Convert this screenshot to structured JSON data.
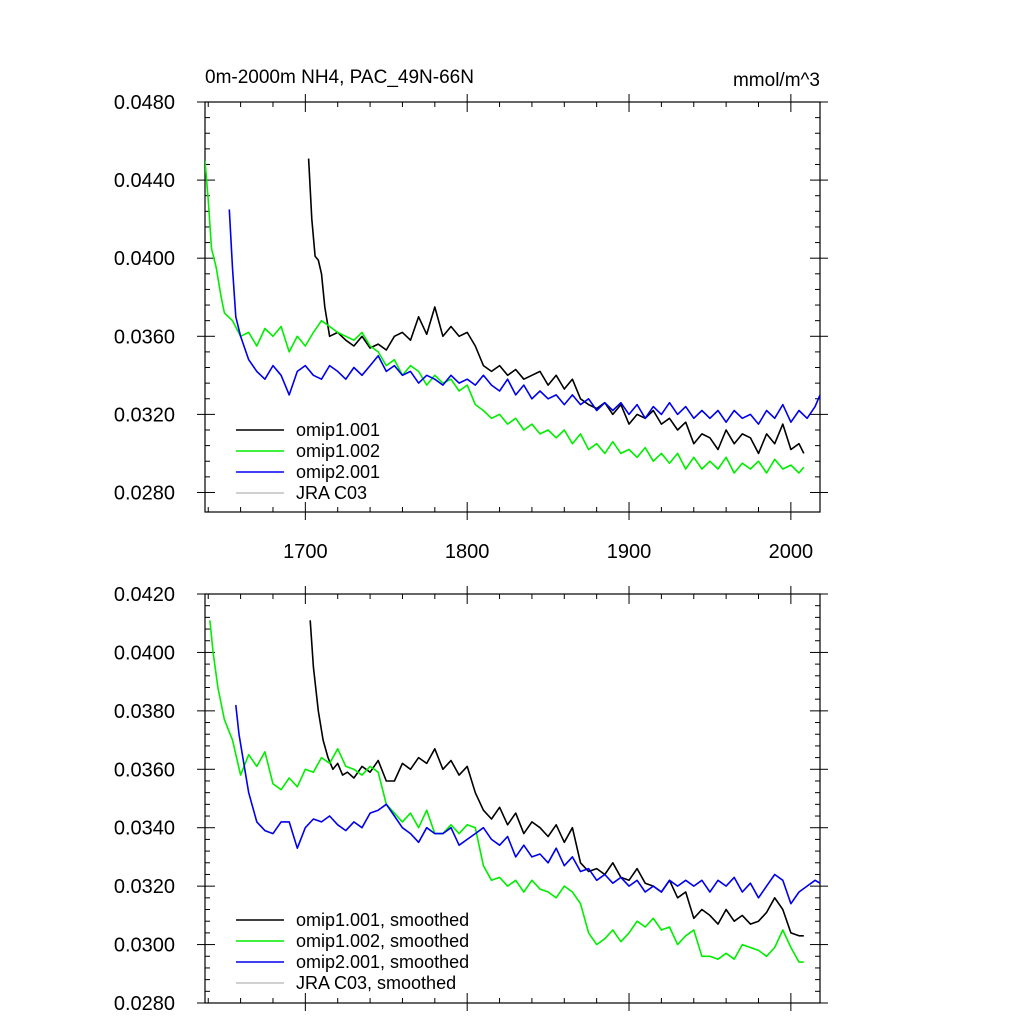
{
  "figure": {
    "title": "0m-2000m NH4, PAC_49N-66N",
    "units": "mmol/m^3"
  },
  "chart_data": [
    {
      "type": "line",
      "title": "0m-2000m NH4, PAC_49N-66N",
      "units": "mmol/m^3",
      "xlabel": "",
      "ylabel": "",
      "xlim": [
        1638,
        2018
      ],
      "ylim": [
        0.027,
        0.048
      ],
      "x_ticks": [
        1700,
        1800,
        1900,
        2000
      ],
      "x_tick_labels": [
        "1700",
        "1800",
        "1900",
        "2000"
      ],
      "y_ticks": [
        0.028,
        0.032,
        0.036,
        0.04,
        0.044,
        0.048
      ],
      "y_tick_labels": [
        "0.0280",
        "0.0320",
        "0.0360",
        "0.0400",
        "0.0440",
        "0.0480"
      ],
      "legend_position": "bottom-left",
      "series": [
        {
          "name": "omip1.001",
          "color": "#000000",
          "x": [
            1702,
            1704,
            1706,
            1708,
            1710,
            1712,
            1715,
            1720,
            1725,
            1730,
            1735,
            1740,
            1745,
            1750,
            1755,
            1760,
            1765,
            1770,
            1775,
            1780,
            1785,
            1790,
            1795,
            1800,
            1805,
            1810,
            1815,
            1820,
            1825,
            1830,
            1835,
            1840,
            1845,
            1850,
            1855,
            1860,
            1865,
            1870,
            1875,
            1880,
            1885,
            1890,
            1895,
            1900,
            1905,
            1910,
            1915,
            1920,
            1925,
            1930,
            1935,
            1940,
            1945,
            1950,
            1955,
            1960,
            1965,
            1970,
            1975,
            1980,
            1985,
            1990,
            1995,
            2000,
            2005,
            2008
          ],
          "values": [
            0.0451,
            0.042,
            0.0401,
            0.0399,
            0.0392,
            0.0375,
            0.036,
            0.0362,
            0.0358,
            0.0355,
            0.036,
            0.0354,
            0.0356,
            0.0353,
            0.036,
            0.0362,
            0.0358,
            0.037,
            0.0361,
            0.0375,
            0.036,
            0.0365,
            0.036,
            0.0362,
            0.0355,
            0.0345,
            0.0342,
            0.0345,
            0.034,
            0.0343,
            0.0338,
            0.034,
            0.0342,
            0.0335,
            0.034,
            0.0333,
            0.0338,
            0.0328,
            0.0325,
            0.0323,
            0.0326,
            0.032,
            0.0325,
            0.0315,
            0.032,
            0.0318,
            0.0322,
            0.0315,
            0.0318,
            0.0312,
            0.0316,
            0.0305,
            0.031,
            0.0308,
            0.0302,
            0.0312,
            0.0305,
            0.031,
            0.0308,
            0.03,
            0.031,
            0.0305,
            0.0315,
            0.0302,
            0.0305,
            0.03
          ]
        },
        {
          "name": "omip1.002",
          "color": "#00ee00",
          "x": [
            1638,
            1640,
            1642,
            1645,
            1648,
            1650,
            1655,
            1660,
            1665,
            1670,
            1675,
            1680,
            1685,
            1690,
            1695,
            1700,
            1705,
            1710,
            1715,
            1720,
            1725,
            1730,
            1735,
            1740,
            1745,
            1750,
            1755,
            1760,
            1765,
            1770,
            1775,
            1780,
            1785,
            1790,
            1795,
            1800,
            1805,
            1810,
            1815,
            1820,
            1825,
            1830,
            1835,
            1840,
            1845,
            1850,
            1855,
            1860,
            1865,
            1870,
            1875,
            1880,
            1885,
            1890,
            1895,
            1900,
            1905,
            1910,
            1915,
            1920,
            1925,
            1930,
            1935,
            1940,
            1945,
            1950,
            1955,
            1960,
            1965,
            1970,
            1975,
            1980,
            1985,
            1990,
            1995,
            2000,
            2005,
            2008
          ],
          "values": [
            0.045,
            0.043,
            0.0405,
            0.0395,
            0.038,
            0.0372,
            0.0368,
            0.036,
            0.0362,
            0.0355,
            0.0364,
            0.036,
            0.0365,
            0.0352,
            0.036,
            0.0355,
            0.0362,
            0.0368,
            0.0365,
            0.0362,
            0.036,
            0.0358,
            0.0362,
            0.0355,
            0.0352,
            0.0345,
            0.0348,
            0.034,
            0.0345,
            0.0342,
            0.0335,
            0.034,
            0.0336,
            0.0338,
            0.0332,
            0.0335,
            0.0325,
            0.0322,
            0.0318,
            0.032,
            0.0315,
            0.0318,
            0.0312,
            0.0315,
            0.031,
            0.0312,
            0.0308,
            0.0312,
            0.0305,
            0.031,
            0.0302,
            0.0305,
            0.03,
            0.0306,
            0.03,
            0.0302,
            0.0298,
            0.0303,
            0.0296,
            0.03,
            0.0295,
            0.03,
            0.0292,
            0.0298,
            0.0292,
            0.0296,
            0.0292,
            0.0298,
            0.029,
            0.0295,
            0.0292,
            0.0296,
            0.029,
            0.0297,
            0.0292,
            0.0294,
            0.029,
            0.0293
          ]
        },
        {
          "name": "omip2.001",
          "color": "#0000ee",
          "x": [
            1653,
            1655,
            1657,
            1660,
            1665,
            1670,
            1675,
            1680,
            1685,
            1690,
            1695,
            1700,
            1705,
            1710,
            1715,
            1720,
            1725,
            1730,
            1735,
            1740,
            1745,
            1750,
            1755,
            1760,
            1765,
            1770,
            1775,
            1780,
            1785,
            1790,
            1795,
            1800,
            1805,
            1810,
            1815,
            1820,
            1825,
            1830,
            1835,
            1840,
            1845,
            1850,
            1855,
            1860,
            1865,
            1870,
            1875,
            1880,
            1885,
            1890,
            1895,
            1900,
            1905,
            1910,
            1915,
            1920,
            1925,
            1930,
            1935,
            1940,
            1945,
            1950,
            1955,
            1960,
            1965,
            1970,
            1975,
            1980,
            1985,
            1990,
            1995,
            2000,
            2005,
            2010,
            2015,
            2018
          ],
          "values": [
            0.0425,
            0.0395,
            0.037,
            0.036,
            0.0348,
            0.0342,
            0.0338,
            0.0345,
            0.034,
            0.033,
            0.0342,
            0.0345,
            0.034,
            0.0338,
            0.0345,
            0.0342,
            0.0338,
            0.0344,
            0.034,
            0.0345,
            0.035,
            0.0342,
            0.0345,
            0.034,
            0.0342,
            0.0336,
            0.034,
            0.0338,
            0.0335,
            0.034,
            0.0336,
            0.0338,
            0.0335,
            0.034,
            0.0335,
            0.0332,
            0.0338,
            0.033,
            0.0335,
            0.0328,
            0.0332,
            0.0328,
            0.033,
            0.0325,
            0.033,
            0.0325,
            0.0328,
            0.0322,
            0.0326,
            0.0322,
            0.0326,
            0.032,
            0.0325,
            0.0318,
            0.0324,
            0.032,
            0.0326,
            0.032,
            0.0324,
            0.0318,
            0.0322,
            0.0318,
            0.0322,
            0.0316,
            0.0322,
            0.0318,
            0.032,
            0.0315,
            0.0322,
            0.0318,
            0.0325,
            0.0316,
            0.0322,
            0.0318,
            0.0324,
            0.033
          ]
        },
        {
          "name": "JRA C03",
          "color": "#c0c0c0",
          "x": [],
          "values": []
        }
      ]
    },
    {
      "type": "line",
      "title": "",
      "xlabel": "",
      "ylabel": "",
      "xlim": [
        1638,
        2018
      ],
      "ylim": [
        0.028,
        0.042
      ],
      "x_ticks": [
        1700,
        1800,
        1900,
        2000
      ],
      "x_tick_labels": [],
      "y_ticks": [
        0.028,
        0.03,
        0.032,
        0.034,
        0.036,
        0.038,
        0.04,
        0.042
      ],
      "y_tick_labels": [
        "0.0280",
        "0.0300",
        "0.0320",
        "0.0340",
        "0.0360",
        "0.0380",
        "0.0400",
        "0.0420"
      ],
      "legend_position": "bottom-left",
      "series": [
        {
          "name": "omip1.001, smoothed",
          "color": "#000000",
          "x": [
            1703,
            1705,
            1708,
            1711,
            1714,
            1717,
            1720,
            1723,
            1726,
            1730,
            1735,
            1740,
            1745,
            1750,
            1755,
            1760,
            1765,
            1770,
            1775,
            1780,
            1785,
            1790,
            1795,
            1800,
            1805,
            1810,
            1815,
            1820,
            1825,
            1830,
            1835,
            1840,
            1845,
            1850,
            1855,
            1860,
            1865,
            1870,
            1875,
            1880,
            1885,
            1890,
            1895,
            1900,
            1905,
            1910,
            1915,
            1920,
            1925,
            1930,
            1935,
            1940,
            1945,
            1950,
            1955,
            1960,
            1965,
            1970,
            1975,
            1980,
            1985,
            1990,
            1995,
            2000,
            2005,
            2008
          ],
          "values": [
            0.0411,
            0.0395,
            0.038,
            0.037,
            0.0364,
            0.036,
            0.0362,
            0.0358,
            0.0359,
            0.0357,
            0.0361,
            0.0359,
            0.0363,
            0.0356,
            0.0356,
            0.0362,
            0.036,
            0.0364,
            0.0362,
            0.0367,
            0.036,
            0.0363,
            0.0358,
            0.0361,
            0.0352,
            0.0346,
            0.0343,
            0.0347,
            0.0341,
            0.0345,
            0.0338,
            0.0342,
            0.034,
            0.0337,
            0.0341,
            0.0335,
            0.034,
            0.0328,
            0.0325,
            0.0326,
            0.0324,
            0.0328,
            0.0323,
            0.0322,
            0.0326,
            0.0321,
            0.032,
            0.0318,
            0.0322,
            0.0316,
            0.0318,
            0.0309,
            0.0312,
            0.031,
            0.0307,
            0.0312,
            0.0308,
            0.031,
            0.0307,
            0.0308,
            0.0311,
            0.0316,
            0.0312,
            0.0304,
            0.0303,
            0.0303
          ]
        },
        {
          "name": "omip1.002, smoothed",
          "color": "#00ee00",
          "x": [
            1641,
            1643,
            1646,
            1650,
            1655,
            1660,
            1665,
            1670,
            1675,
            1680,
            1685,
            1690,
            1695,
            1700,
            1705,
            1710,
            1715,
            1720,
            1725,
            1730,
            1735,
            1740,
            1745,
            1750,
            1755,
            1760,
            1765,
            1770,
            1775,
            1780,
            1785,
            1790,
            1795,
            1800,
            1805,
            1810,
            1815,
            1820,
            1825,
            1830,
            1835,
            1840,
            1845,
            1850,
            1855,
            1860,
            1865,
            1870,
            1875,
            1880,
            1885,
            1890,
            1895,
            1900,
            1905,
            1910,
            1915,
            1920,
            1925,
            1930,
            1935,
            1940,
            1945,
            1950,
            1955,
            1960,
            1965,
            1970,
            1975,
            1980,
            1985,
            1990,
            1995,
            2000,
            2005,
            2008
          ],
          "values": [
            0.0411,
            0.04,
            0.0388,
            0.0377,
            0.037,
            0.0358,
            0.0365,
            0.0361,
            0.0366,
            0.0355,
            0.0353,
            0.0357,
            0.0354,
            0.036,
            0.0359,
            0.0364,
            0.0362,
            0.0367,
            0.0361,
            0.036,
            0.0358,
            0.0361,
            0.0359,
            0.0348,
            0.0345,
            0.0342,
            0.0345,
            0.034,
            0.0346,
            0.0338,
            0.0338,
            0.0341,
            0.0338,
            0.0341,
            0.034,
            0.0327,
            0.0322,
            0.0323,
            0.032,
            0.0322,
            0.0318,
            0.0322,
            0.0319,
            0.0318,
            0.0316,
            0.032,
            0.0318,
            0.0314,
            0.0304,
            0.03,
            0.0302,
            0.0305,
            0.0301,
            0.0304,
            0.0308,
            0.0306,
            0.0309,
            0.0305,
            0.0306,
            0.03,
            0.0303,
            0.0305,
            0.0296,
            0.0296,
            0.0295,
            0.0297,
            0.0295,
            0.03,
            0.0299,
            0.0298,
            0.0296,
            0.0299,
            0.0305,
            0.0299,
            0.0294,
            0.0294
          ]
        },
        {
          "name": "omip2.001, smoothed",
          "color": "#0000ee",
          "x": [
            1657,
            1659,
            1662,
            1665,
            1670,
            1675,
            1680,
            1685,
            1690,
            1695,
            1700,
            1705,
            1710,
            1715,
            1720,
            1725,
            1730,
            1735,
            1740,
            1745,
            1750,
            1755,
            1760,
            1765,
            1770,
            1775,
            1780,
            1785,
            1790,
            1795,
            1800,
            1805,
            1810,
            1815,
            1820,
            1825,
            1830,
            1835,
            1840,
            1845,
            1850,
            1855,
            1860,
            1865,
            1870,
            1875,
            1880,
            1885,
            1890,
            1895,
            1900,
            1905,
            1910,
            1915,
            1920,
            1925,
            1930,
            1935,
            1940,
            1945,
            1950,
            1955,
            1960,
            1965,
            1970,
            1975,
            1980,
            1985,
            1990,
            1995,
            2000,
            2005,
            2010,
            2015,
            2018
          ],
          "values": [
            0.0382,
            0.0372,
            0.0362,
            0.0352,
            0.0342,
            0.0339,
            0.0338,
            0.0342,
            0.0342,
            0.0333,
            0.034,
            0.0343,
            0.0342,
            0.0344,
            0.0341,
            0.0339,
            0.0342,
            0.034,
            0.0345,
            0.0346,
            0.0348,
            0.0344,
            0.034,
            0.0338,
            0.0335,
            0.034,
            0.0338,
            0.0338,
            0.034,
            0.0334,
            0.0336,
            0.0338,
            0.034,
            0.0336,
            0.0334,
            0.0337,
            0.033,
            0.0334,
            0.033,
            0.0331,
            0.0328,
            0.0333,
            0.0327,
            0.033,
            0.0325,
            0.0326,
            0.0322,
            0.0324,
            0.0321,
            0.0323,
            0.032,
            0.0322,
            0.0318,
            0.032,
            0.0318,
            0.0322,
            0.032,
            0.0322,
            0.032,
            0.0322,
            0.0318,
            0.0322,
            0.032,
            0.0323,
            0.0318,
            0.0321,
            0.0316,
            0.032,
            0.0324,
            0.0322,
            0.0314,
            0.0318,
            0.032,
            0.0322,
            0.0321
          ]
        },
        {
          "name": "JRA C03, smoothed",
          "color": "#c0c0c0",
          "x": [],
          "values": []
        }
      ]
    }
  ]
}
